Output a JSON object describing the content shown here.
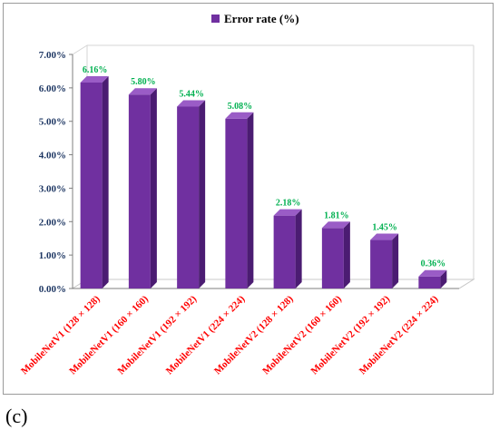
{
  "panel_label": "(c)",
  "colors": {
    "bar_front": "#7030a0",
    "bar_side": "#4b1c72",
    "bar_top": "#9a5cc6",
    "data_label": "#00b050",
    "category_label": "#ff0000",
    "axis_label": "#1f3864"
  },
  "chart_data": {
    "type": "bar",
    "title": "",
    "xlabel": "",
    "ylabel": "",
    "legend": {
      "position": "top",
      "entries": [
        "Error rate (%)"
      ]
    },
    "ylim": [
      0,
      7
    ],
    "y_ticks": [
      "0.00%",
      "1.00%",
      "2.00%",
      "3.00%",
      "4.00%",
      "5.00%",
      "6.00%",
      "7.00%"
    ],
    "grid": false,
    "categories": [
      "MobileNetV1 (128 × 128)",
      "MobileNetV1 (160 × 160)",
      "MobileNetV1 (192 × 192)",
      "MobileNetV1 (224 × 224)",
      "MobileNetV2 (128 × 128)",
      "MobileNetV2 (160 × 160)",
      "MobileNetV2 (192 × 192)",
      "MobileNetV2 (224 × 224)"
    ],
    "series": [
      {
        "name": "Error rate (%)",
        "values": [
          6.16,
          5.8,
          5.44,
          5.08,
          2.18,
          1.81,
          1.45,
          0.36
        ],
        "labels": [
          "6.16%",
          "5.80%",
          "5.44%",
          "5.08%",
          "2.18%",
          "1.81%",
          "1.45%",
          "0.36%"
        ]
      }
    ]
  }
}
